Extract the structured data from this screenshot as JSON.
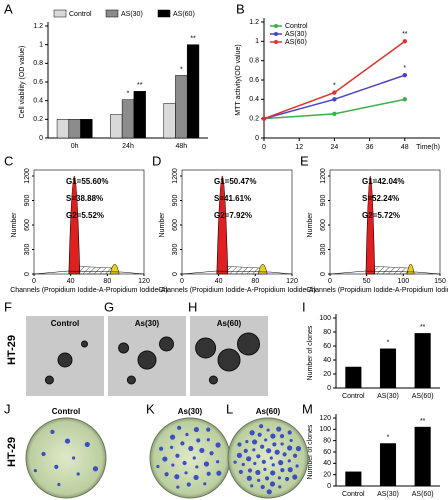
{
  "chart_data": [
    {
      "type": "bar",
      "letter": "A",
      "ylabel": "Cell viability (OD value)",
      "categories": [
        "0h",
        "24h",
        "48h"
      ],
      "series": [
        {
          "name": "Control",
          "color": "#d9d9d9",
          "values": [
            0.2,
            0.25,
            0.37
          ]
        },
        {
          "name": "AS(30)",
          "color": "#8c8c8c",
          "values": [
            0.2,
            0.41,
            0.67
          ]
        },
        {
          "name": "AS(60)",
          "color": "#000000",
          "values": [
            0.2,
            0.5,
            1.0
          ]
        }
      ],
      "annotations": [
        {
          "text": "*",
          "series": 1,
          "index": 1
        },
        {
          "text": "**",
          "series": 2,
          "index": 1
        },
        {
          "text": "*",
          "series": 1,
          "index": 2
        },
        {
          "text": "**",
          "series": 2,
          "index": 2
        }
      ],
      "ylim": [
        0,
        1.2
      ],
      "yticks": [
        0,
        0.2,
        0.4,
        0.6,
        0.8,
        1,
        1.2
      ],
      "legend": "top"
    },
    {
      "type": "line",
      "letter": "B",
      "ylabel": "MTT activity(OD value)",
      "xlabel": "Time(h)",
      "x": [
        0,
        24,
        48
      ],
      "series": [
        {
          "name": "Control",
          "color": "#3cae4a",
          "values": [
            0.2,
            0.25,
            0.4
          ]
        },
        {
          "name": "AS(30)",
          "color": "#4444c0",
          "values": [
            0.2,
            0.4,
            0.65
          ]
        },
        {
          "name": "AS(60)",
          "color": "#e0322c",
          "values": [
            0.2,
            0.47,
            1.0
          ]
        }
      ],
      "annotations": [
        {
          "text": "*",
          "series": 2,
          "index": 1
        },
        {
          "text": "*",
          "series": 1,
          "index": 2
        },
        {
          "text": "**",
          "series": 2,
          "index": 2
        }
      ],
      "xlim": [
        0,
        60
      ],
      "xticks": [
        0,
        12,
        24,
        36,
        48
      ],
      "ylim": [
        0,
        1.2
      ],
      "yticks": [
        0,
        0.2,
        0.4,
        0.6,
        0.8,
        1,
        1.2
      ],
      "legend": "top-left"
    },
    {
      "type": "bar",
      "letter": "I",
      "ylabel": "Number of clones",
      "categories": [
        "Control",
        "AS(30)",
        "AS(60)"
      ],
      "series": [
        {
          "color": "#000000",
          "values": [
            30,
            56,
            78
          ]
        }
      ],
      "annotations": [
        {
          "text": "*",
          "series": 0,
          "index": 1
        },
        {
          "text": "**",
          "series": 0,
          "index": 2
        }
      ],
      "ylim": [
        0,
        100
      ],
      "yticks": [
        0,
        20,
        40,
        60,
        80,
        100
      ]
    },
    {
      "type": "bar",
      "letter": "M",
      "ylabel": "Number of clones",
      "categories": [
        "Control",
        "AS(30)",
        "AS(60)"
      ],
      "series": [
        {
          "color": "#000000",
          "values": [
            25,
            75,
            104
          ]
        }
      ],
      "annotations": [
        {
          "text": "*",
          "series": 0,
          "index": 1
        },
        {
          "text": "**",
          "series": 0,
          "index": 2
        }
      ],
      "ylim": [
        0,
        120
      ],
      "yticks": [
        0,
        20,
        40,
        60,
        80,
        100,
        120
      ]
    }
  ],
  "flow_panels": [
    {
      "letter": "C",
      "lines": [
        "G1=55.60%",
        "S=38.88%",
        "G2=5.52%"
      ],
      "ylabel": "Number",
      "xlabel": "Channels (Propidium Iodide-A-Propidium Iodide-A)",
      "xticks": [
        0,
        40,
        80,
        120
      ],
      "yticks": [
        0,
        300,
        600,
        900,
        1200
      ]
    },
    {
      "letter": "D",
      "lines": [
        "G1=50.47%",
        "S=41.61%",
        "G2=7.92%"
      ],
      "ylabel": "Number",
      "xlabel": "Channels (Propidium Iodide-A-Propidium Iodide-A)",
      "xticks": [
        0,
        40,
        80,
        120
      ],
      "yticks": [
        0,
        300,
        600,
        900,
        1200
      ]
    },
    {
      "letter": "E",
      "lines": [
        "G1=42.04%",
        "S=52.24%",
        "G2=5.72%"
      ],
      "ylabel": "Number",
      "xlabel": "Channels (Propidium Iodide-A-Propidium Iodide-A)",
      "xticks": [
        0,
        50,
        100,
        150
      ],
      "yticks": [
        0,
        300,
        600,
        900,
        1200
      ]
    }
  ],
  "image_rows": [
    {
      "row_label": "HT-29",
      "panels": [
        {
          "letter": "F",
          "label": "Control"
        },
        {
          "letter": "G",
          "label": "As(30)"
        },
        {
          "letter": "H",
          "label": "As(60)"
        }
      ]
    },
    {
      "row_label": "HT-29",
      "panels": [
        {
          "letter": "J",
          "label": "Control"
        },
        {
          "letter": "K",
          "label": "As(30)"
        },
        {
          "letter": "L",
          "label": "As(60)"
        }
      ]
    }
  ]
}
